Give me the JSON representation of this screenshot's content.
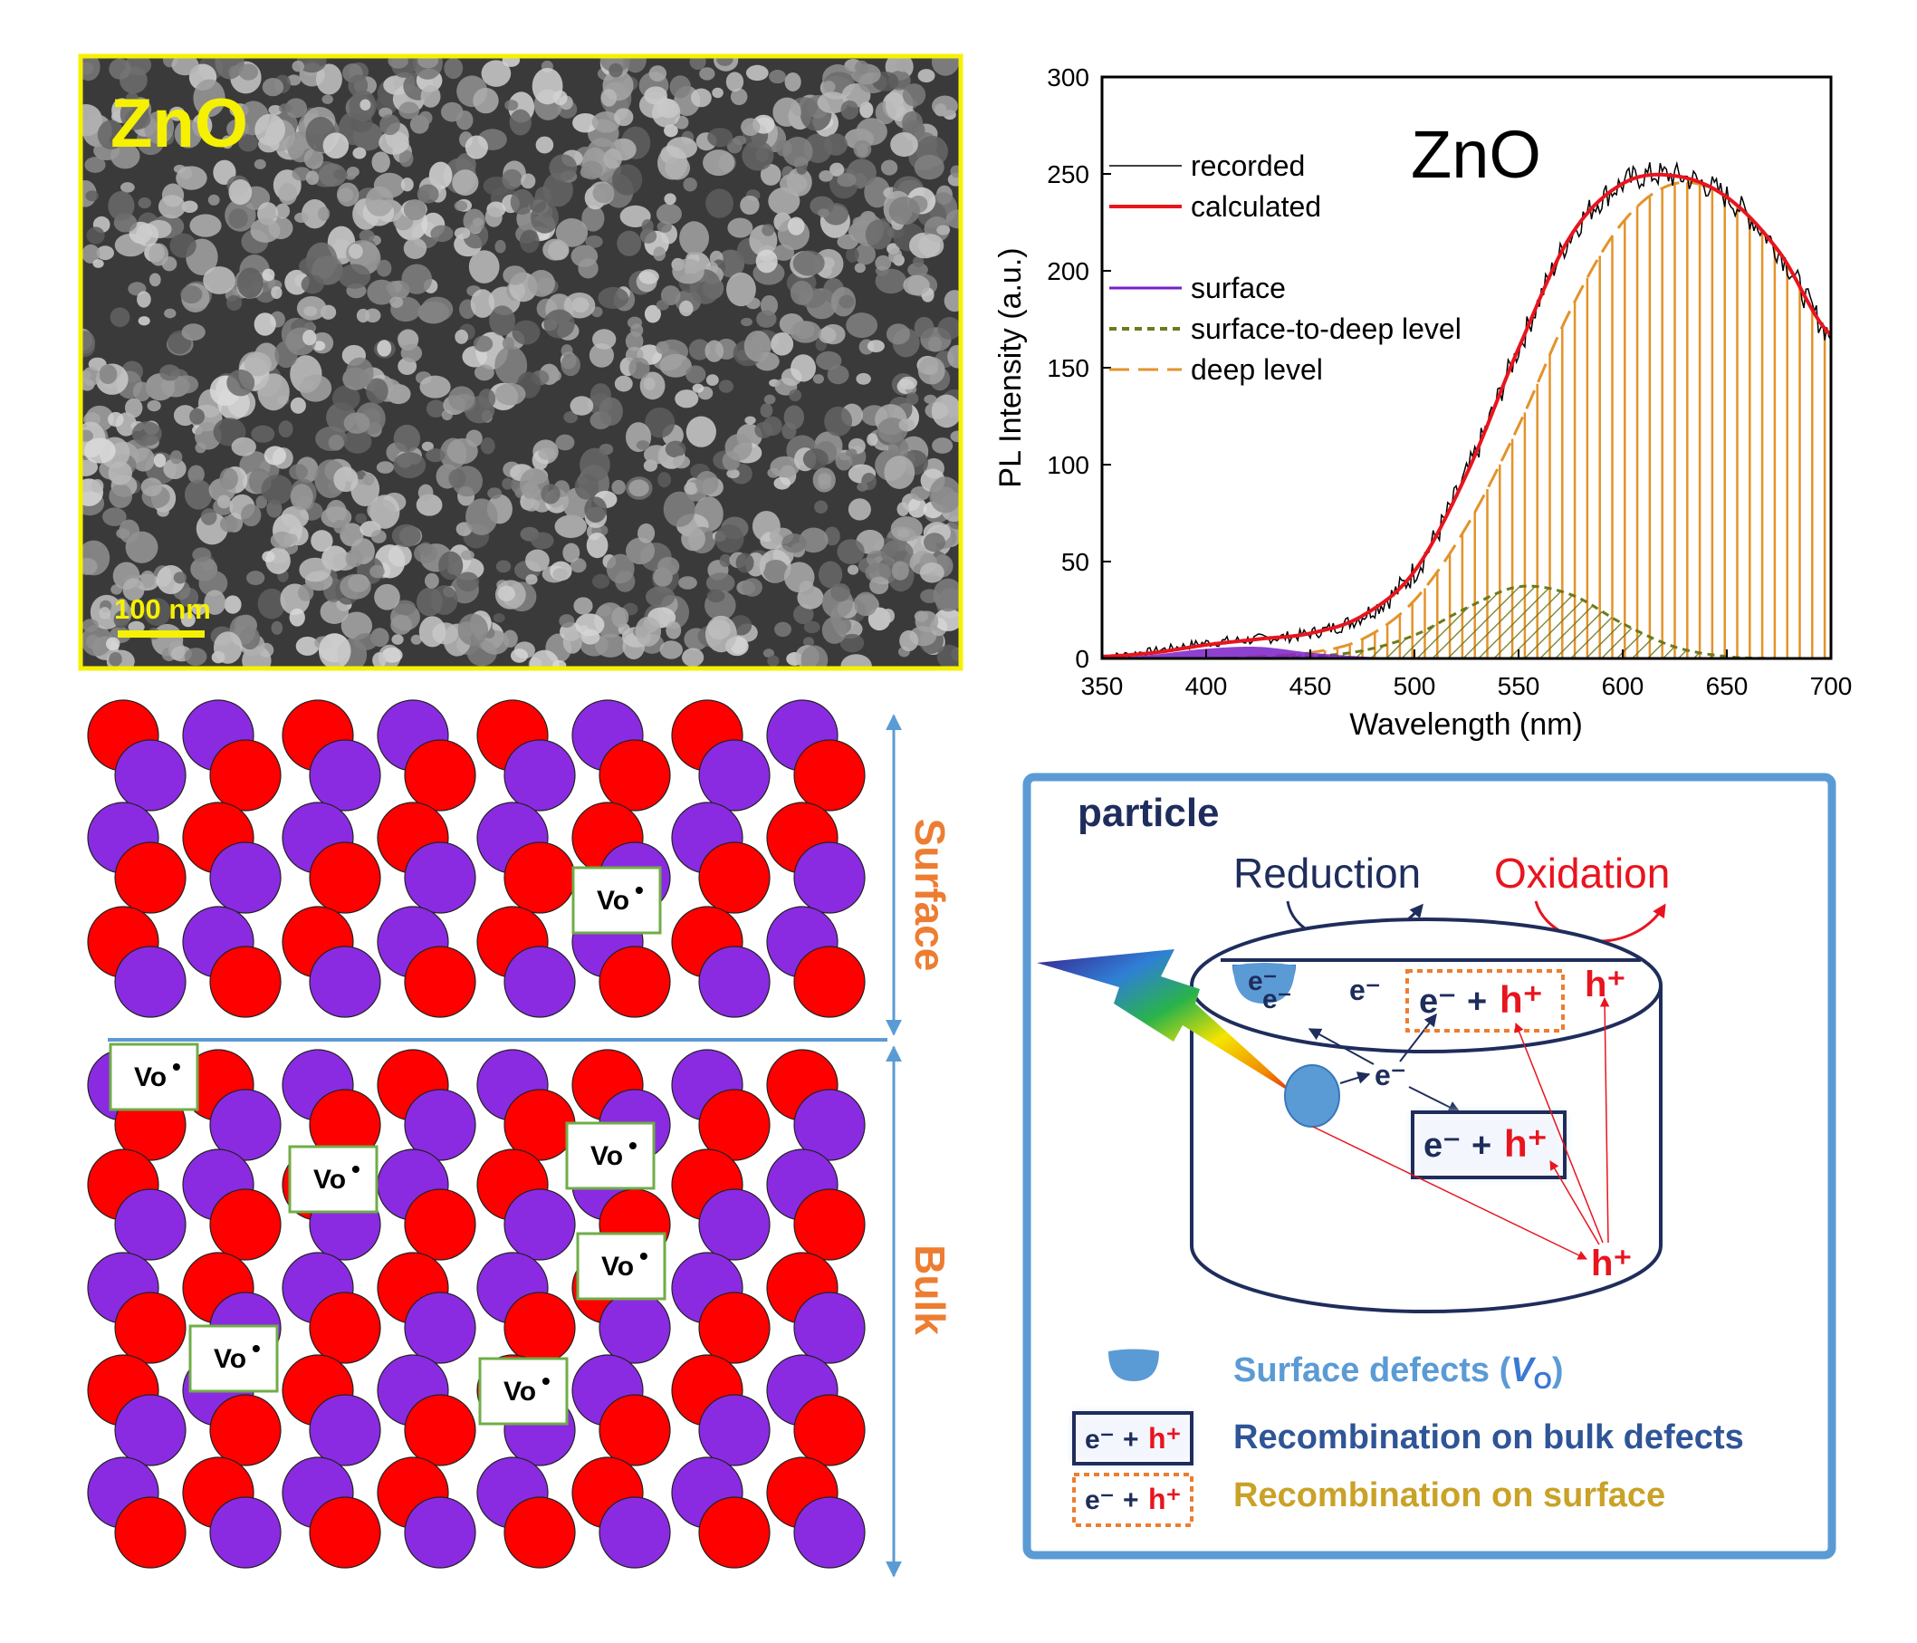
{
  "sem": {
    "label": "ZnO",
    "scale_bar": "100 nm"
  },
  "chart_data": {
    "type": "area",
    "title": "ZnO",
    "xlabel": "Wavelength (nm)",
    "ylabel": "PL Intensity (a.u.)",
    "xlim": [
      350,
      700
    ],
    "ylim": [
      0,
      300
    ],
    "xticks": [
      350,
      400,
      450,
      500,
      550,
      600,
      650,
      700
    ],
    "yticks": [
      0,
      50,
      100,
      150,
      200,
      250,
      300
    ],
    "legend_position": "top-left",
    "x": [
      350,
      375,
      400,
      425,
      450,
      475,
      500,
      525,
      550,
      575,
      600,
      625,
      650,
      675,
      700
    ],
    "series": [
      {
        "name": "recorded",
        "color": "#000000",
        "style": "thin-solid",
        "values": [
          1,
          4,
          8,
          10,
          13,
          22,
          45,
          95,
          160,
          218,
          245,
          249,
          238,
          210,
          167
        ]
      },
      {
        "name": "calculated",
        "color": "#e8141e",
        "style": "solid",
        "values": [
          1,
          3,
          7,
          10,
          13,
          22,
          45,
          95,
          160,
          218,
          245,
          249,
          238,
          210,
          167
        ]
      },
      {
        "name": "surface",
        "color": "#7a1fc7",
        "style": "solid-fill",
        "values": [
          0,
          2,
          5,
          6,
          3,
          1,
          0,
          0,
          0,
          0,
          0,
          0,
          0,
          0,
          0
        ]
      },
      {
        "name": "surface-to-deep level",
        "color": "#6b7a1a",
        "style": "short-dash-hatch",
        "values": [
          0,
          0,
          0,
          0,
          1,
          4,
          12,
          26,
          37,
          33,
          18,
          6,
          1,
          0,
          0
        ]
      },
      {
        "name": "deep level",
        "color": "#e3932a",
        "style": "dash-fill",
        "values": [
          0,
          0,
          0,
          1,
          3,
          10,
          30,
          68,
          120,
          180,
          225,
          245,
          238,
          210,
          167
        ]
      }
    ]
  },
  "lattice": {
    "surface_label": "Surface",
    "bulk_label": "Bulk",
    "vacancy_label": "Vo",
    "vacancy_charge": "•"
  },
  "particle": {
    "title": "particle",
    "reduction": "Reduction",
    "oxidation": "Oxidation",
    "e_minus": "e⁻",
    "h_plus": "h⁺",
    "plus": "+",
    "legend": {
      "surface_defects": "Surface defects (",
      "vo_symbol": "V",
      "vo_sub": "O",
      "close_paren": ")",
      "bulk": "Recombination on bulk defects",
      "surface": "Recombination on surface"
    }
  },
  "colors": {
    "sem_frame": "#f5f100",
    "oxygen_atom": "#ff0000",
    "zinc_atom": "#8a2be2",
    "axis_arrow": "#5b9bd5",
    "label_orange": "#ed7d31",
    "navy": "#1f2d5c",
    "red": "#e8141e",
    "panel_border": "#5b9bd5",
    "legend_bulk": "#2f5597",
    "legend_surface": "#c9a227"
  }
}
